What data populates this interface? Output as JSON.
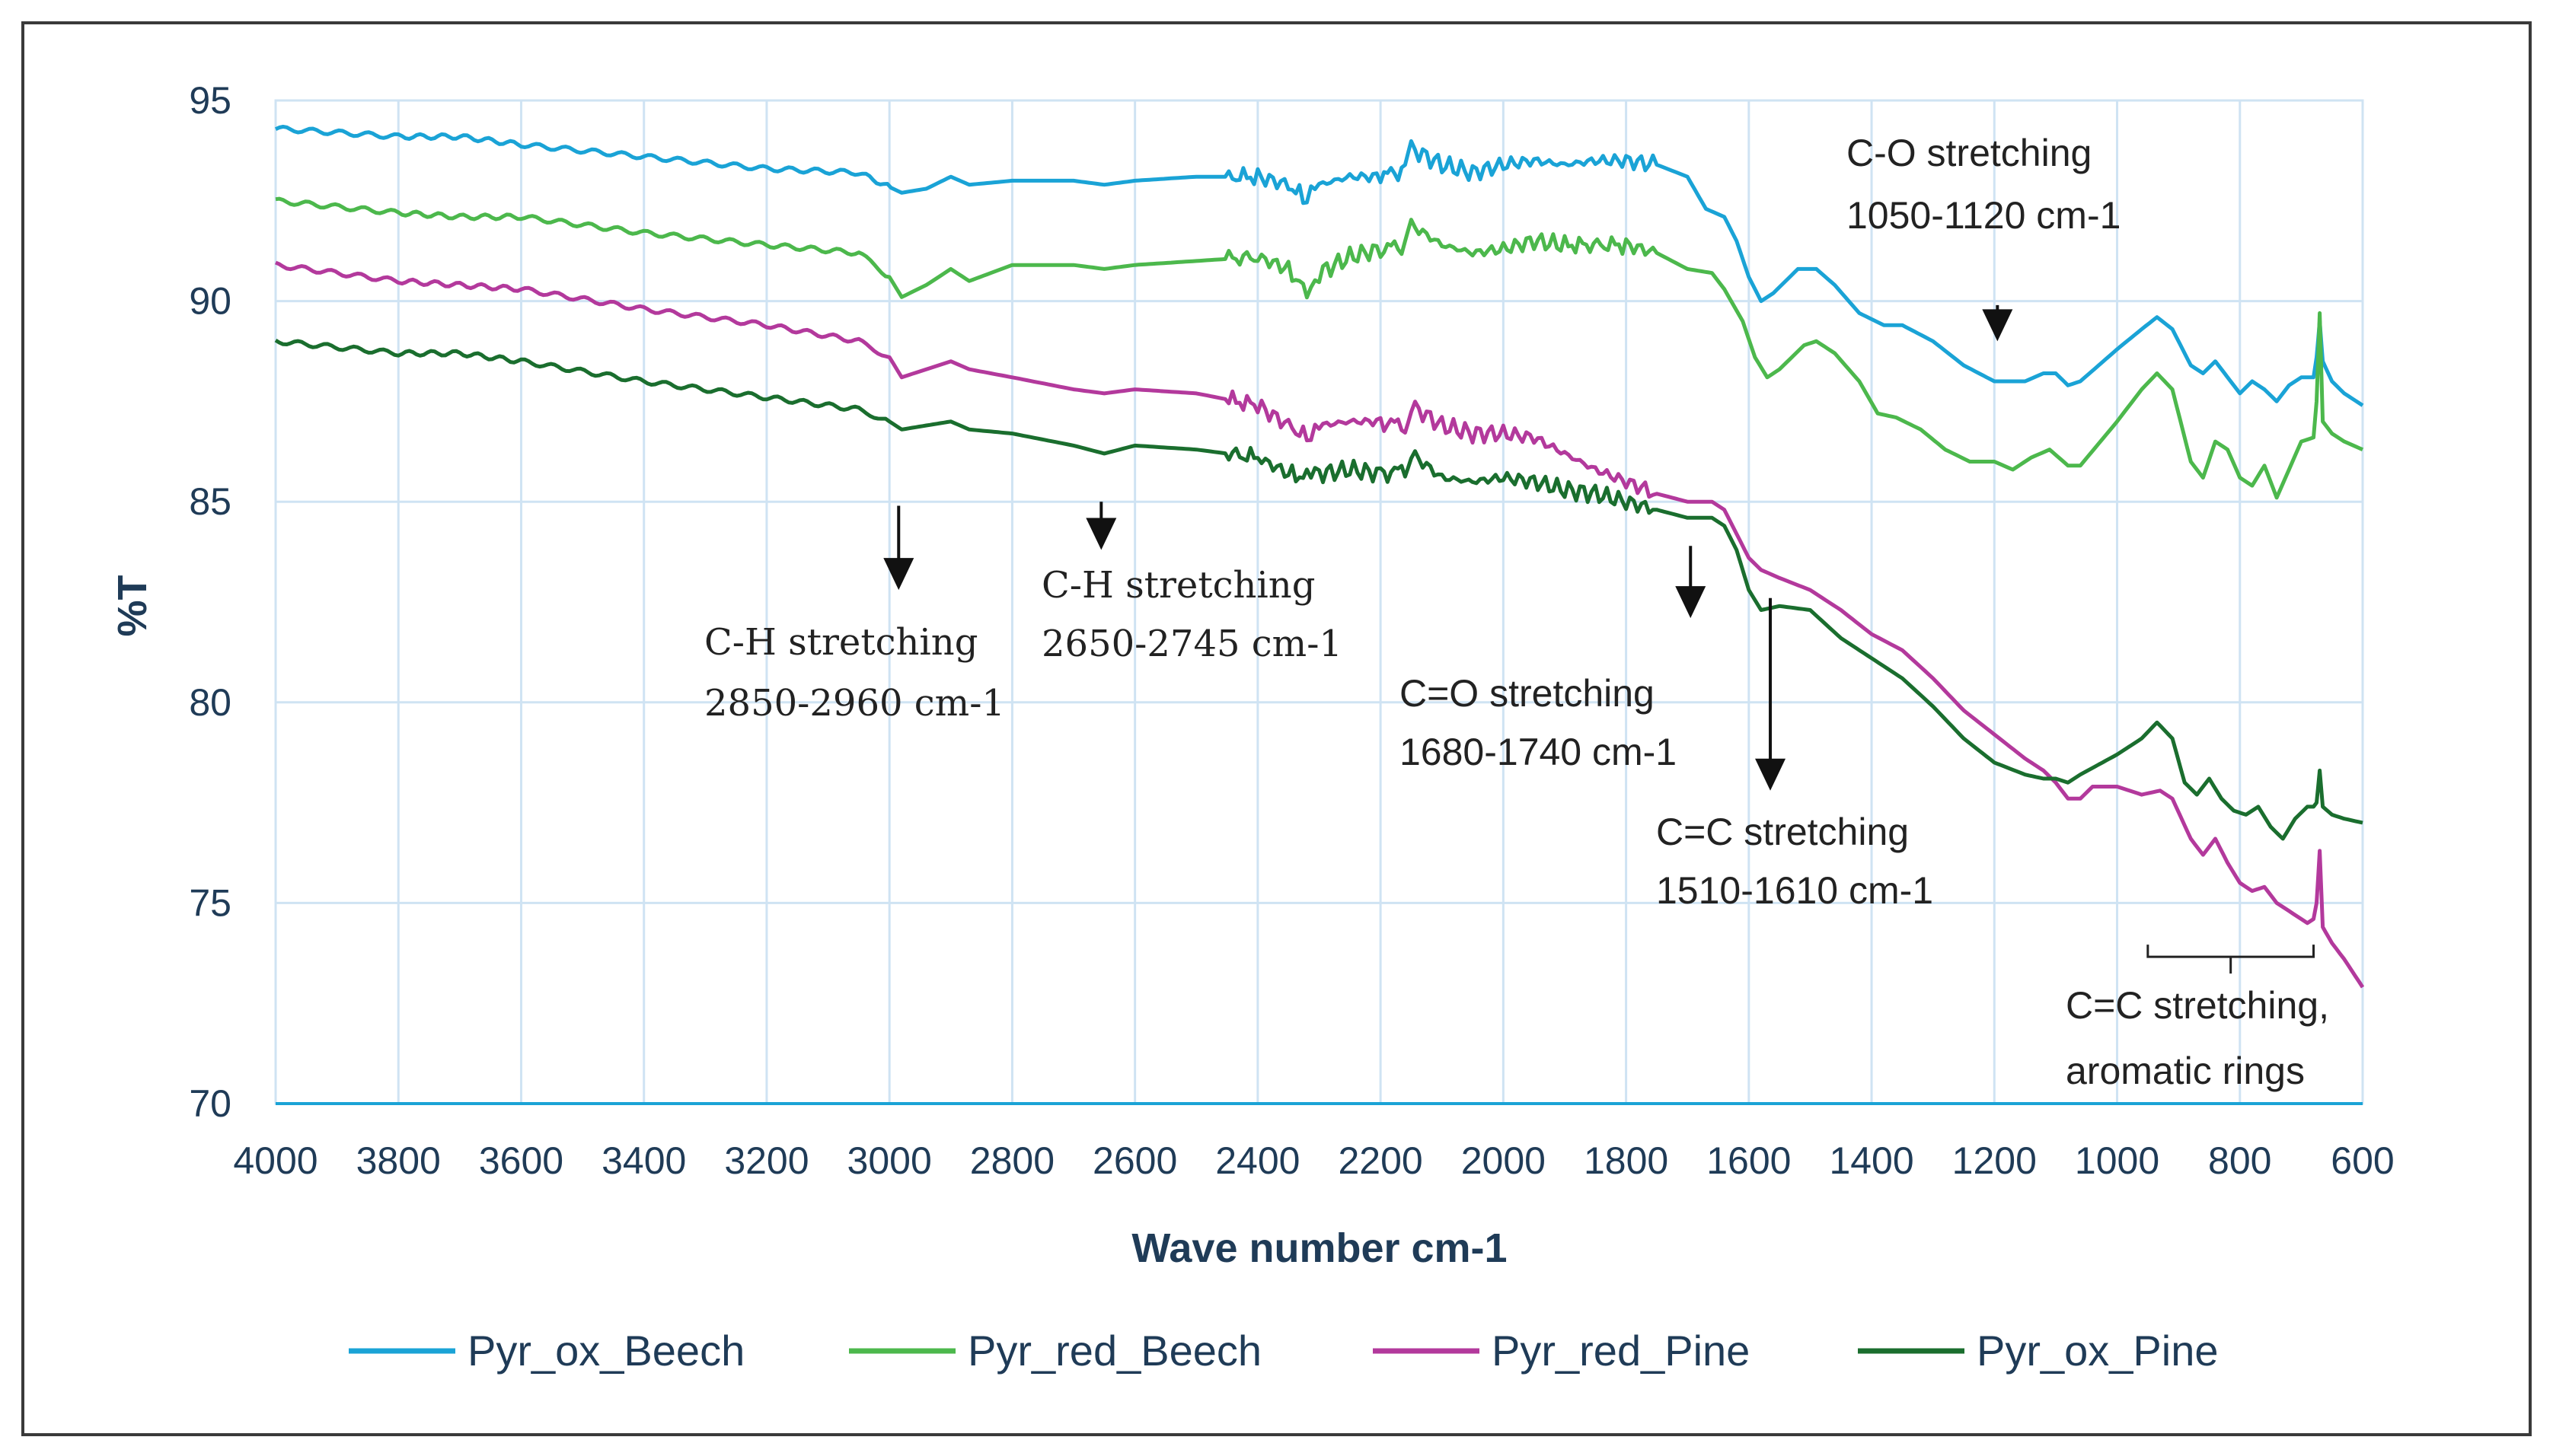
{
  "chart_data": {
    "type": "line",
    "xlabel": "Wave number cm-1",
    "ylabel": "%T",
    "xlim": [
      4000,
      600
    ],
    "ylim": [
      70,
      95
    ],
    "x_reversed": true,
    "xticks": [
      "4000",
      "3800",
      "3600",
      "3400",
      "3200",
      "3000",
      "2800",
      "2600",
      "2400",
      "2200",
      "2000",
      "1800",
      "1600",
      "1400",
      "1200",
      "1000",
      "800",
      "600"
    ],
    "yticks": [
      "70",
      "75",
      "80",
      "85",
      "90",
      "95"
    ],
    "grid": true,
    "legend_position": "bottom",
    "series": [
      {
        "name": "Pyr_ox_Beech",
        "color": "#1aa3d6",
        "points": [
          [
            4000,
            94.3
          ],
          [
            3800,
            94.1
          ],
          [
            3700,
            94.1
          ],
          [
            3600,
            93.9
          ],
          [
            3400,
            93.6
          ],
          [
            3200,
            93.3
          ],
          [
            3050,
            93.2
          ],
          [
            2980,
            92.7
          ],
          [
            2940,
            92.8
          ],
          [
            2900,
            93.1
          ],
          [
            2870,
            92.9
          ],
          [
            2800,
            93.0
          ],
          [
            2700,
            93.0
          ],
          [
            2650,
            92.9
          ],
          [
            2600,
            93.0
          ],
          [
            2500,
            93.1
          ],
          [
            2400,
            93.1
          ],
          [
            2350,
            92.9
          ],
          [
            2320,
            92.5
          ],
          [
            2300,
            92.9
          ],
          [
            2250,
            93.1
          ],
          [
            2200,
            93.1
          ],
          [
            2160,
            93.3
          ],
          [
            2150,
            93.8
          ],
          [
            2100,
            93.4
          ],
          [
            2050,
            93.2
          ],
          [
            2000,
            93.4
          ],
          [
            1950,
            93.5
          ],
          [
            1900,
            93.4
          ],
          [
            1850,
            93.5
          ],
          [
            1800,
            93.5
          ],
          [
            1750,
            93.4
          ],
          [
            1700,
            93.1
          ],
          [
            1670,
            92.3
          ],
          [
            1640,
            92.1
          ],
          [
            1620,
            91.5
          ],
          [
            1600,
            90.6
          ],
          [
            1580,
            90.0
          ],
          [
            1560,
            90.2
          ],
          [
            1520,
            90.8
          ],
          [
            1490,
            90.8
          ],
          [
            1460,
            90.4
          ],
          [
            1420,
            89.7
          ],
          [
            1380,
            89.4
          ],
          [
            1350,
            89.4
          ],
          [
            1300,
            89.0
          ],
          [
            1250,
            88.4
          ],
          [
            1200,
            88.0
          ],
          [
            1150,
            88.0
          ],
          [
            1120,
            88.2
          ],
          [
            1100,
            88.2
          ],
          [
            1080,
            87.9
          ],
          [
            1060,
            88.0
          ],
          [
            1000,
            88.8
          ],
          [
            960,
            89.3
          ],
          [
            935,
            89.6
          ],
          [
            910,
            89.3
          ],
          [
            880,
            88.4
          ],
          [
            860,
            88.2
          ],
          [
            840,
            88.5
          ],
          [
            820,
            88.1
          ],
          [
            800,
            87.7
          ],
          [
            780,
            88.0
          ],
          [
            760,
            87.8
          ],
          [
            740,
            87.5
          ],
          [
            720,
            87.9
          ],
          [
            700,
            88.1
          ],
          [
            680,
            88.1
          ],
          [
            675,
            88.6
          ],
          [
            670,
            89.5
          ],
          [
            665,
            88.5
          ],
          [
            650,
            88.0
          ],
          [
            630,
            87.7
          ],
          [
            600,
            87.4
          ]
        ]
      },
      {
        "name": "Pyr_red_Beech",
        "color": "#4cb84c",
        "points": [
          [
            4000,
            92.5
          ],
          [
            3800,
            92.2
          ],
          [
            3700,
            92.1
          ],
          [
            3600,
            92.1
          ],
          [
            3400,
            91.7
          ],
          [
            3200,
            91.4
          ],
          [
            3050,
            91.2
          ],
          [
            3000,
            90.6
          ],
          [
            2980,
            90.1
          ],
          [
            2940,
            90.4
          ],
          [
            2900,
            90.8
          ],
          [
            2870,
            90.5
          ],
          [
            2800,
            90.9
          ],
          [
            2700,
            90.9
          ],
          [
            2650,
            90.8
          ],
          [
            2600,
            90.9
          ],
          [
            2500,
            91.0
          ],
          [
            2400,
            91.1
          ],
          [
            2350,
            90.8
          ],
          [
            2320,
            90.2
          ],
          [
            2300,
            90.7
          ],
          [
            2250,
            91.1
          ],
          [
            2200,
            91.3
          ],
          [
            2160,
            91.4
          ],
          [
            2150,
            91.9
          ],
          [
            2100,
            91.4
          ],
          [
            2050,
            91.2
          ],
          [
            2000,
            91.3
          ],
          [
            1950,
            91.5
          ],
          [
            1900,
            91.4
          ],
          [
            1800,
            91.4
          ],
          [
            1750,
            91.2
          ],
          [
            1700,
            90.8
          ],
          [
            1660,
            90.7
          ],
          [
            1640,
            90.3
          ],
          [
            1610,
            89.5
          ],
          [
            1590,
            88.6
          ],
          [
            1570,
            88.1
          ],
          [
            1550,
            88.3
          ],
          [
            1510,
            88.9
          ],
          [
            1490,
            89.0
          ],
          [
            1460,
            88.7
          ],
          [
            1420,
            88.0
          ],
          [
            1390,
            87.2
          ],
          [
            1360,
            87.1
          ],
          [
            1320,
            86.8
          ],
          [
            1280,
            86.3
          ],
          [
            1240,
            86.0
          ],
          [
            1200,
            86.0
          ],
          [
            1170,
            85.8
          ],
          [
            1140,
            86.1
          ],
          [
            1110,
            86.3
          ],
          [
            1080,
            85.9
          ],
          [
            1060,
            85.9
          ],
          [
            1000,
            87.0
          ],
          [
            960,
            87.8
          ],
          [
            935,
            88.2
          ],
          [
            910,
            87.8
          ],
          [
            880,
            86.0
          ],
          [
            860,
            85.6
          ],
          [
            840,
            86.5
          ],
          [
            820,
            86.3
          ],
          [
            800,
            85.6
          ],
          [
            780,
            85.4
          ],
          [
            760,
            85.9
          ],
          [
            740,
            85.1
          ],
          [
            720,
            85.8
          ],
          [
            700,
            86.5
          ],
          [
            680,
            86.6
          ],
          [
            675,
            87.5
          ],
          [
            670,
            89.7
          ],
          [
            665,
            87.0
          ],
          [
            650,
            86.7
          ],
          [
            630,
            86.5
          ],
          [
            600,
            86.3
          ]
        ]
      },
      {
        "name": "Pyr_red_Pine",
        "color": "#b3399c",
        "points": [
          [
            4000,
            90.9
          ],
          [
            3800,
            90.5
          ],
          [
            3700,
            90.4
          ],
          [
            3600,
            90.3
          ],
          [
            3400,
            89.8
          ],
          [
            3200,
            89.4
          ],
          [
            3050,
            89.0
          ],
          [
            3000,
            88.6
          ],
          [
            2980,
            88.1
          ],
          [
            2940,
            88.3
          ],
          [
            2900,
            88.5
          ],
          [
            2870,
            88.3
          ],
          [
            2800,
            88.1
          ],
          [
            2700,
            87.8
          ],
          [
            2650,
            87.7
          ],
          [
            2600,
            87.8
          ],
          [
            2500,
            87.7
          ],
          [
            2400,
            87.4
          ],
          [
            2350,
            86.9
          ],
          [
            2320,
            86.6
          ],
          [
            2300,
            86.9
          ],
          [
            2250,
            87.0
          ],
          [
            2200,
            87.0
          ],
          [
            2160,
            86.9
          ],
          [
            2150,
            87.4
          ],
          [
            2100,
            86.9
          ],
          [
            2050,
            86.7
          ],
          [
            2000,
            86.7
          ],
          [
            1950,
            86.6
          ],
          [
            1900,
            86.2
          ],
          [
            1850,
            85.8
          ],
          [
            1800,
            85.5
          ],
          [
            1750,
            85.2
          ],
          [
            1700,
            85.0
          ],
          [
            1660,
            85.0
          ],
          [
            1640,
            84.8
          ],
          [
            1620,
            84.2
          ],
          [
            1600,
            83.6
          ],
          [
            1580,
            83.3
          ],
          [
            1550,
            83.1
          ],
          [
            1500,
            82.8
          ],
          [
            1450,
            82.3
          ],
          [
            1400,
            81.7
          ],
          [
            1350,
            81.3
          ],
          [
            1300,
            80.6
          ],
          [
            1250,
            79.8
          ],
          [
            1200,
            79.2
          ],
          [
            1150,
            78.6
          ],
          [
            1120,
            78.3
          ],
          [
            1100,
            78.0
          ],
          [
            1080,
            77.6
          ],
          [
            1060,
            77.6
          ],
          [
            1040,
            77.9
          ],
          [
            1000,
            77.9
          ],
          [
            960,
            77.7
          ],
          [
            930,
            77.8
          ],
          [
            910,
            77.6
          ],
          [
            880,
            76.6
          ],
          [
            860,
            76.2
          ],
          [
            840,
            76.6
          ],
          [
            820,
            76.0
          ],
          [
            800,
            75.5
          ],
          [
            780,
            75.3
          ],
          [
            760,
            75.4
          ],
          [
            740,
            75.0
          ],
          [
            720,
            74.8
          ],
          [
            700,
            74.6
          ],
          [
            690,
            74.5
          ],
          [
            680,
            74.6
          ],
          [
            675,
            75.0
          ],
          [
            670,
            76.3
          ],
          [
            665,
            74.4
          ],
          [
            650,
            74.0
          ],
          [
            630,
            73.6
          ],
          [
            600,
            72.9
          ]
        ]
      },
      {
        "name": "Pyr_ox_Pine",
        "color": "#1a6e2e",
        "points": [
          [
            4000,
            89.0
          ],
          [
            3800,
            88.7
          ],
          [
            3700,
            88.7
          ],
          [
            3600,
            88.5
          ],
          [
            3400,
            88.0
          ],
          [
            3200,
            87.6
          ],
          [
            3050,
            87.3
          ],
          [
            3000,
            87.0
          ],
          [
            2980,
            86.8
          ],
          [
            2940,
            86.9
          ],
          [
            2900,
            87.0
          ],
          [
            2870,
            86.8
          ],
          [
            2800,
            86.7
          ],
          [
            2700,
            86.4
          ],
          [
            2650,
            86.2
          ],
          [
            2600,
            86.4
          ],
          [
            2500,
            86.3
          ],
          [
            2400,
            86.1
          ],
          [
            2350,
            85.7
          ],
          [
            2320,
            85.6
          ],
          [
            2300,
            85.7
          ],
          [
            2250,
            85.8
          ],
          [
            2200,
            85.7
          ],
          [
            2160,
            85.8
          ],
          [
            2150,
            86.2
          ],
          [
            2100,
            85.6
          ],
          [
            2050,
            85.5
          ],
          [
            2000,
            85.6
          ],
          [
            1950,
            85.5
          ],
          [
            1900,
            85.3
          ],
          [
            1850,
            85.2
          ],
          [
            1800,
            85.0
          ],
          [
            1750,
            84.8
          ],
          [
            1700,
            84.6
          ],
          [
            1660,
            84.6
          ],
          [
            1640,
            84.4
          ],
          [
            1620,
            83.8
          ],
          [
            1600,
            82.8
          ],
          [
            1580,
            82.3
          ],
          [
            1550,
            82.4
          ],
          [
            1500,
            82.3
          ],
          [
            1450,
            81.6
          ],
          [
            1400,
            81.1
          ],
          [
            1350,
            80.6
          ],
          [
            1300,
            79.9
          ],
          [
            1250,
            79.1
          ],
          [
            1200,
            78.5
          ],
          [
            1150,
            78.2
          ],
          [
            1120,
            78.1
          ],
          [
            1100,
            78.1
          ],
          [
            1080,
            78.0
          ],
          [
            1060,
            78.2
          ],
          [
            1000,
            78.7
          ],
          [
            960,
            79.1
          ],
          [
            935,
            79.5
          ],
          [
            910,
            79.1
          ],
          [
            890,
            78.0
          ],
          [
            870,
            77.7
          ],
          [
            850,
            78.1
          ],
          [
            830,
            77.6
          ],
          [
            810,
            77.3
          ],
          [
            790,
            77.2
          ],
          [
            770,
            77.4
          ],
          [
            750,
            76.9
          ],
          [
            730,
            76.6
          ],
          [
            710,
            77.1
          ],
          [
            690,
            77.4
          ],
          [
            680,
            77.4
          ],
          [
            675,
            77.5
          ],
          [
            670,
            78.3
          ],
          [
            665,
            77.4
          ],
          [
            650,
            77.2
          ],
          [
            630,
            77.1
          ],
          [
            600,
            77.0
          ]
        ]
      }
    ],
    "annotations": [
      {
        "line1": "C-H stretching",
        "line2": "2850-2960 cm-1",
        "arrow_x": 2985,
        "arrow_y_top": 84.9,
        "arrow_y_bottom": 82.8
      },
      {
        "line1": "C-H stretching",
        "line2": "2650-2745 cm-1",
        "arrow_x": 2655,
        "arrow_y_top": 85.0,
        "arrow_y_bottom": 83.8
      },
      {
        "line1": "C=O stretching",
        "line2": "1680-1740 cm-1",
        "arrow_x": 1695,
        "arrow_y_top": 83.9,
        "arrow_y_bottom": 82.1
      },
      {
        "line1": "C=C stretching",
        "line2": "1510-1610 cm-1",
        "arrow_x": 1565,
        "arrow_y_top": 82.6,
        "arrow_y_bottom": 77.8
      },
      {
        "line1": "C-O stretching",
        "line2": "1050-1120 cm-1",
        "arrow_x": 1195,
        "arrow_y_top": 89.9,
        "arrow_y_bottom": 89.0
      },
      {
        "line1": "C=C stretching,",
        "line2": "aromatic rings",
        "bracket_from": 950,
        "bracket_to": 680,
        "bracket_y": 74.0
      }
    ]
  }
}
